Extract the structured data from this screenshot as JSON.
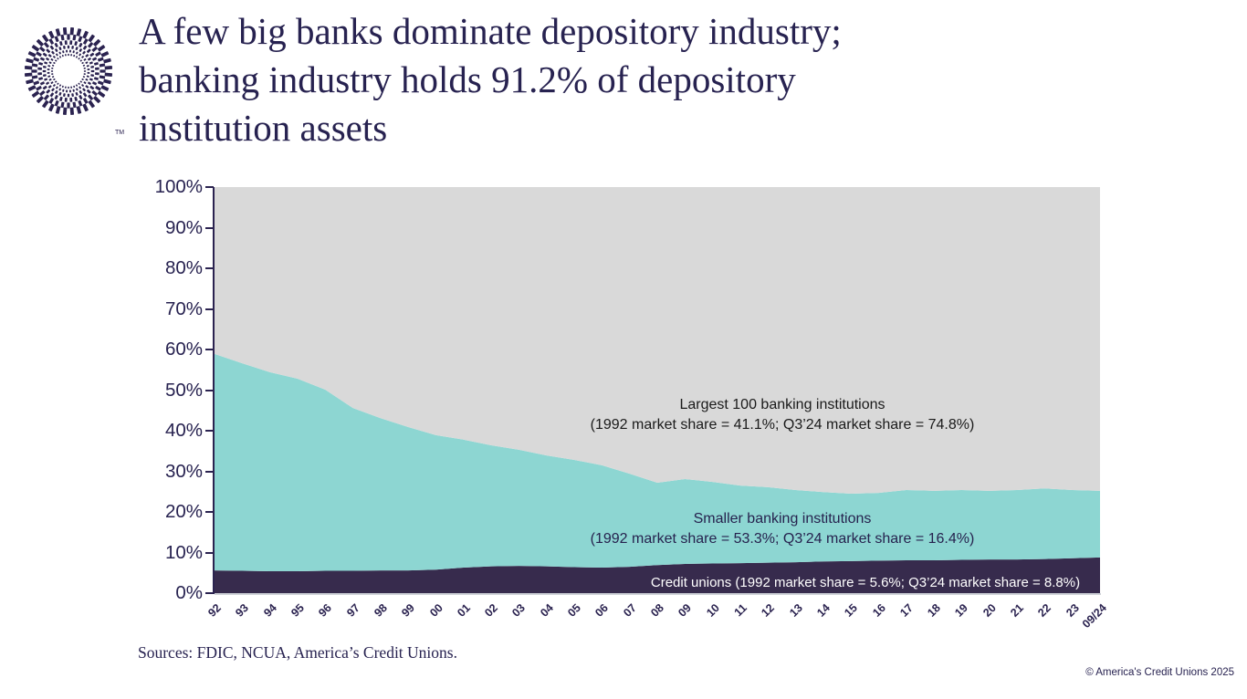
{
  "header": {
    "title_lines": [
      "A few big banks dominate depository industry;",
      "banking industry holds 91.2% of depository",
      "institution assets"
    ]
  },
  "logo": {
    "name": "America's Credit Unions logo",
    "tm": "TM",
    "color": "#2b2350"
  },
  "footer": {
    "sources": "Sources: FDIC, NCUA, America’s Credit Unions.",
    "copyright": "© America's Credit Unions 2025"
  },
  "chart_data": {
    "type": "area",
    "stacked": true,
    "stacked_total": 100,
    "grid": false,
    "legend": "in-plot annotations",
    "xlabel": "",
    "ylabel": "",
    "ylim": [
      0,
      100
    ],
    "y_tick_labels": [
      "0%",
      "10%",
      "20%",
      "30%",
      "40%",
      "50%",
      "60%",
      "70%",
      "80%",
      "90%",
      "100%"
    ],
    "categories": [
      "92",
      "93",
      "94",
      "95",
      "96",
      "97",
      "98",
      "99",
      "00",
      "01",
      "02",
      "03",
      "04",
      "05",
      "06",
      "07",
      "08",
      "09",
      "10",
      "11",
      "12",
      "13",
      "14",
      "15",
      "16",
      "17",
      "18",
      "19",
      "20",
      "21",
      "22",
      "23",
      "09/24"
    ],
    "series": [
      {
        "name": "Credit unions",
        "key": "credit-unions",
        "color": "#372B4D",
        "values": [
          5.6,
          5.5,
          5.4,
          5.4,
          5.5,
          5.5,
          5.6,
          5.6,
          5.8,
          6.3,
          6.6,
          6.7,
          6.6,
          6.4,
          6.3,
          6.5,
          6.9,
          7.2,
          7.3,
          7.4,
          7.5,
          7.6,
          7.8,
          7.9,
          8.0,
          8.1,
          8.1,
          8.2,
          8.3,
          8.3,
          8.4,
          8.6,
          8.8
        ]
      },
      {
        "name": "Smaller banking institutions",
        "key": "smaller-banks",
        "color": "#8DD6D2",
        "values": [
          53.3,
          51.1,
          49.0,
          47.4,
          44.6,
          40.1,
          37.5,
          35.3,
          33.1,
          31.5,
          29.8,
          28.6,
          27.3,
          26.4,
          25.2,
          22.9,
          20.3,
          20.9,
          20.1,
          19.1,
          18.6,
          17.8,
          17.1,
          16.6,
          16.7,
          17.3,
          17.1,
          17.2,
          16.9,
          17.1,
          17.4,
          16.8,
          16.4
        ]
      },
      {
        "name": "Largest 100 banking institutions",
        "key": "largest-100-banks",
        "color": "#D9D9D9",
        "values": [
          41.1,
          43.4,
          45.6,
          47.2,
          49.9,
          54.4,
          56.9,
          59.1,
          61.1,
          62.2,
          63.6,
          64.7,
          66.1,
          67.2,
          68.5,
          70.6,
          72.8,
          71.9,
          72.6,
          73.5,
          73.9,
          74.6,
          75.1,
          75.5,
          75.3,
          74.6,
          74.8,
          74.6,
          74.8,
          74.6,
          74.2,
          74.6,
          74.8
        ]
      }
    ],
    "annotations": [
      {
        "key": "largest-100-label",
        "lines": [
          "Largest 100 banking institutions",
          "(1992 market share = 41.1%; Q3’24 market share = 74.8%)"
        ]
      },
      {
        "key": "smaller-banks-label",
        "lines": [
          "Smaller banking institutions",
          "(1992 market share = 53.3%; Q3’24 market share = 16.4%)"
        ]
      },
      {
        "key": "credit-unions-label",
        "lines": [
          "Credit unions (1992 market share = 5.6%; Q3’24 market share = 8.8%)"
        ]
      }
    ]
  }
}
